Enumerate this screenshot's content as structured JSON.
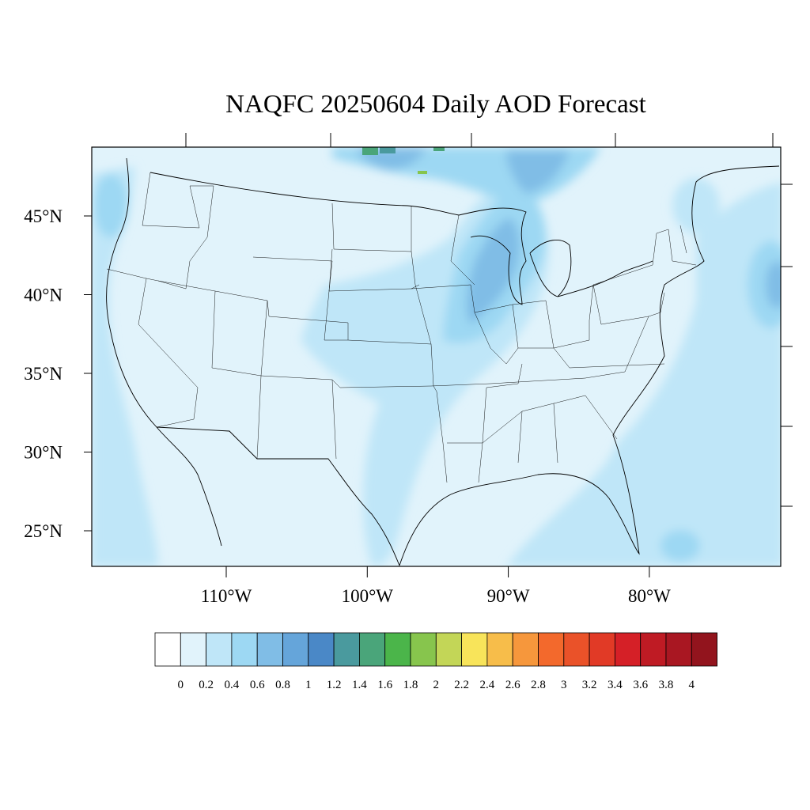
{
  "title": "NAQFC 20250604 Daily AOD Forecast",
  "map": {
    "projection": "lambert-conformal",
    "region": "Contiguous United States",
    "lat_ticks": [
      {
        "lat": 45,
        "label": "45°N"
      },
      {
        "lat": 40,
        "label": "40°N"
      },
      {
        "lat": 35,
        "label": "35°N"
      },
      {
        "lat": 30,
        "label": "30°N"
      },
      {
        "lat": 25,
        "label": "25°N"
      }
    ],
    "lon_ticks": [
      {
        "lon": -110,
        "label": "110°W"
      },
      {
        "lon": -100,
        "label": "100°W"
      },
      {
        "lon": -90,
        "label": "90°W"
      },
      {
        "lon": -80,
        "label": "80°W"
      }
    ],
    "background_level": "0.2-0.4",
    "plumes": [
      {
        "region": "Upper Midwest / Great Lakes",
        "max_level": "1.0-1.2"
      },
      {
        "region": "Central Plains (Kansas, Oklahoma)",
        "max_level": "0.4-0.6"
      },
      {
        "region": "Southern Canada (north of Montana/North Dakota)",
        "max_level": "1.8-2.0"
      },
      {
        "region": "Western Atlantic off Mid-Atlantic coast",
        "max_level": "0.6-0.8"
      },
      {
        "region": "Bahamas",
        "max_level": "0.6-0.8"
      }
    ]
  },
  "colorbar": {
    "labels": [
      "0",
      "0.2",
      "0.4",
      "0.6",
      "0.8",
      "1",
      "1.2",
      "1.4",
      "1.6",
      "1.8",
      "2",
      "2.2",
      "2.4",
      "2.6",
      "2.8",
      "3",
      "3.2",
      "3.4",
      "3.6",
      "3.8",
      "4"
    ],
    "colors": [
      "#ffffff",
      "#e1f3fb",
      "#bfe6f8",
      "#9dd8f3",
      "#80bde6",
      "#65a5da",
      "#4a88c7",
      "#4a9a9e",
      "#4aa57a",
      "#4bb54a",
      "#87c54d",
      "#c3d657",
      "#f8e45a",
      "#f7bd4a",
      "#f6973c",
      "#f3692c",
      "#ea5229",
      "#e13a26",
      "#d52027",
      "#bf1b24",
      "#a91722",
      "#92141d"
    ]
  }
}
